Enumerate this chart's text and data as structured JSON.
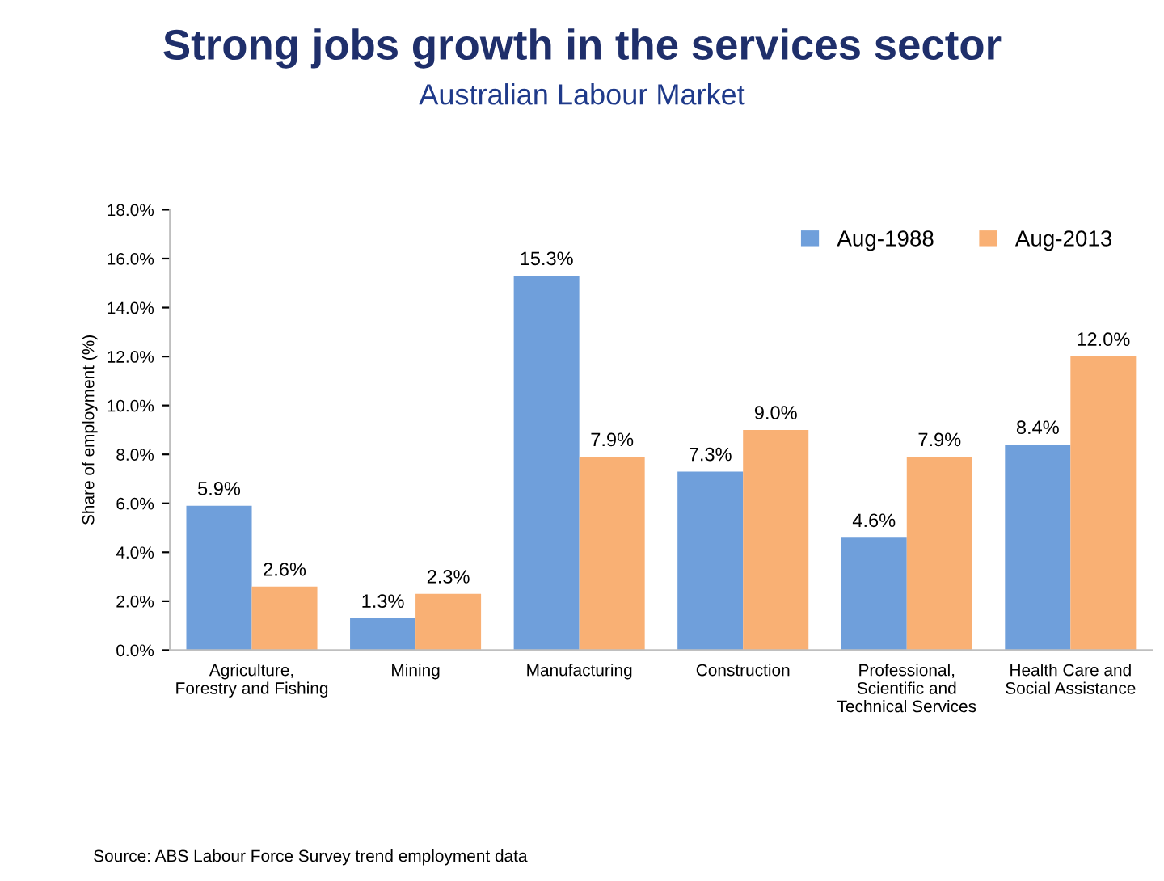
{
  "chart_data": {
    "type": "bar",
    "title": "Strong jobs growth in the services sector",
    "subtitle": "Australian Labour Market",
    "ylabel": "Share of employment (%)",
    "categories": [
      "Agriculture,\nForestry and Fishing",
      "Mining",
      "Manufacturing",
      "Construction",
      "Professional,\nScientific and\nTechnical Services",
      "Health Care and\nSocial Assistance"
    ],
    "series": [
      {
        "name": "Aug-1988",
        "color": "#6f9fdb",
        "values": [
          5.9,
          1.3,
          15.3,
          7.3,
          4.6,
          8.4
        ],
        "value_labels": [
          "5.9%",
          "1.3%",
          "15.3%",
          "7.3%",
          "4.6%",
          "8.4%"
        ]
      },
      {
        "name": "Aug-2013",
        "color": "#f9b074",
        "values": [
          2.6,
          2.3,
          7.9,
          9.0,
          7.9,
          12.0
        ],
        "value_labels": [
          "2.6%",
          "2.3%",
          "7.9%",
          "9.0%",
          "7.9%",
          "12.0%"
        ]
      }
    ],
    "ylim": [
      0,
      18
    ],
    "yticks": [
      {
        "value": 0,
        "label": "0.0%"
      },
      {
        "value": 2,
        "label": "2.0%"
      },
      {
        "value": 4,
        "label": "4.0%"
      },
      {
        "value": 6,
        "label": "6.0%"
      },
      {
        "value": 8,
        "label": "8.0%"
      },
      {
        "value": 10,
        "label": "10.0%"
      },
      {
        "value": 12,
        "label": "12.0%"
      },
      {
        "value": 14,
        "label": "14.0%"
      },
      {
        "value": 16,
        "label": "16.0%"
      },
      {
        "value": 18,
        "label": "18.0%"
      }
    ],
    "grid": false,
    "legend": "top right",
    "annotations": [
      "Source: ABS Labour Force Survey trend employment data"
    ]
  }
}
